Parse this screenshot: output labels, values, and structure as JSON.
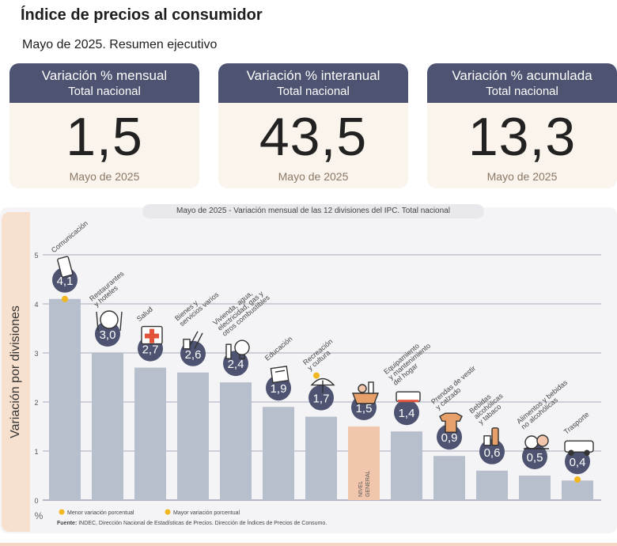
{
  "header": {
    "title": "Índice de precios al consumidor",
    "subtitle": "Mayo de 2025. Resumen ejecutivo"
  },
  "cards": [
    {
      "head": "Variación % mensual",
      "sub": "Total nacional",
      "value": "1,5",
      "foot": "Mayo de 2025"
    },
    {
      "head": "Variación % interanual",
      "sub": "Total nacional",
      "value": "43,5",
      "foot": "Mayo de 2025"
    },
    {
      "head": "Variación % acumulada",
      "sub": "Total nacional",
      "value": "13,3",
      "foot": "Mayo de 2025"
    }
  ],
  "legend": {
    "min": "Menor variación porcentual",
    "max": "Mayor variación porcentual"
  },
  "source": {
    "label": "Fuente:",
    "text": "INDEC, Dirección Nacional de Estadísticas de Precios. Dirección de Índices de Precios de Consumo."
  },
  "colors": {
    "bar": "#b8bfcc",
    "general_bar": "#f2c5ad",
    "badge": "#4d5370",
    "dot": "#f2b71f",
    "card_head": "#4d5370"
  },
  "chart_data": {
    "type": "bar",
    "title": "Mayo de 2025 - Variación mensual de las 12 divisiones del IPC. Total nacional",
    "ylabel": "Variación por divisiones",
    "yunit": "%",
    "ylim": [
      0,
      5
    ],
    "yticks": [
      "0",
      "1",
      "2",
      "3",
      "4",
      "5"
    ],
    "grid": true,
    "categories": [
      [
        "Comunicación"
      ],
      [
        "Restaurantes",
        "y hoteles"
      ],
      [
        "Salud"
      ],
      [
        "Bienes y",
        "servicios varios"
      ],
      [
        "Vivienda, agua,",
        "electricidad, gas y",
        "otros combustibles"
      ],
      [
        "Educación"
      ],
      [
        "Recreación",
        "y cultura"
      ],
      [],
      [
        "Equipamiento",
        "y mantenimiento",
        "del hogar"
      ],
      [
        "Prendas de vestir",
        "y calzado"
      ],
      [
        "Bebidas",
        "alcohólicas",
        "y tabaco"
      ],
      [
        "Alimentos y bebidas",
        "no alcohólicas"
      ],
      [
        "Trasporte"
      ]
    ],
    "values": [
      4.1,
      3.0,
      2.7,
      2.6,
      2.4,
      1.9,
      1.7,
      1.5,
      1.4,
      0.9,
      0.6,
      0.5,
      0.4
    ],
    "labels": [
      "4,1",
      "3,0",
      "2,7",
      "2,6",
      "2,4",
      "1,9",
      "1,7",
      "1,5",
      "1,4",
      "0,9",
      "0,6",
      "0,5",
      "0,4"
    ],
    "icons": [
      "phone-icon",
      "dining-icon",
      "health-cross-icon",
      "tools-icon",
      "lightbulb-icon",
      "books-icon",
      "beach-icon",
      "basket-icon",
      "appliance-icon",
      "clothes-icon",
      "bottles-icon",
      "groceries-icon",
      "bus-icon"
    ],
    "general_index": 7,
    "general_label": [
      "NIVEL",
      "GENERAL"
    ],
    "max_index": 0,
    "min_index": 12
  }
}
